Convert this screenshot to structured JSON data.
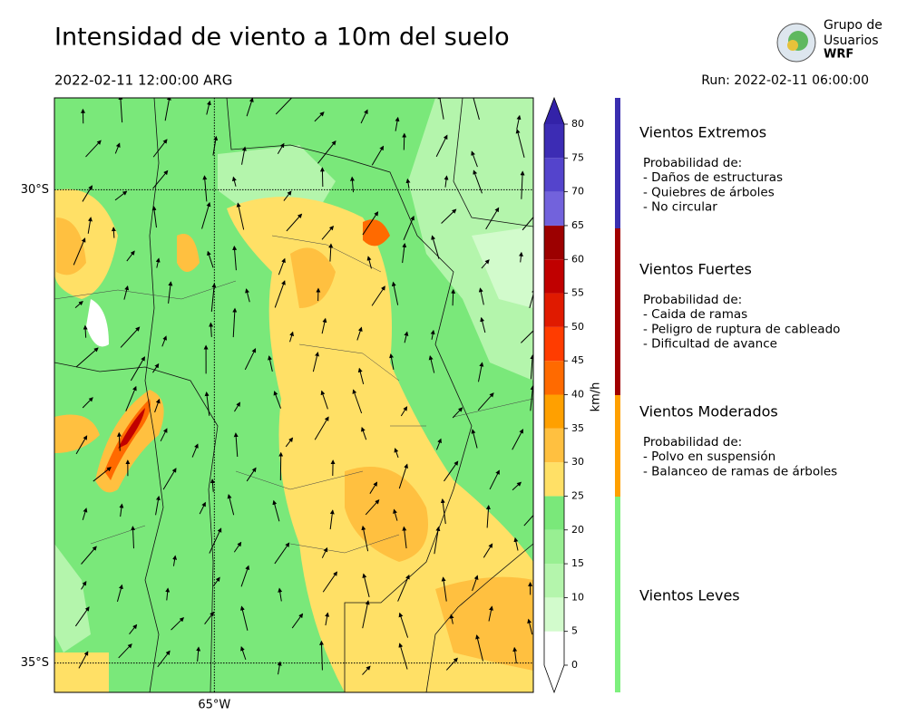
{
  "header": {
    "title": "Intensidad de viento a 10m del suelo",
    "valid_time": "2022-02-11 12:00:00 ARG",
    "run": "Run: 2022-02-11 06:00:00"
  },
  "logo": {
    "lines": [
      "Grupo de",
      "Usuarios",
      "WRF"
    ]
  },
  "map": {
    "lat_range": [
      -35.31,
      -29.03
    ],
    "lon_range": [
      -66.69,
      -61.63
    ],
    "lat_lines": [
      {
        "value": -30,
        "label": "30°S"
      },
      {
        "value": -35,
        "label": "35°S"
      }
    ],
    "lon_lines": [
      {
        "value": -65,
        "label": "65°W"
      }
    ]
  },
  "colorbar": {
    "label": "km/h",
    "ticks": [
      0,
      5,
      10,
      15,
      20,
      25,
      30,
      35,
      40,
      45,
      50,
      55,
      60,
      65,
      70,
      75,
      80
    ],
    "colors": [
      "#ffffff",
      "#d2fbcc",
      "#b4f5ac",
      "#98ef92",
      "#7ae87a",
      "#ffe066",
      "#ffc040",
      "#ffa000",
      "#ff6a00",
      "#ff3c00",
      "#e01a00",
      "#c00000",
      "#9c0000",
      "#7262dc",
      "#5444cc",
      "#3c2cb4"
    ],
    "under_color": "#ffffff",
    "over_color": "#3322a8"
  },
  "legend": [
    {
      "title": "Vientos Extremos",
      "color": "#3b2fa8",
      "bar_color": "#3a2fb0",
      "intro": "Probabilidad de:",
      "items": [
        "- Daños de estructuras",
        "- Quiebres de árboles",
        "- No circular"
      ]
    },
    {
      "title": "Vientos Fuertes",
      "color": "#a00000",
      "bar_color": "#a00000",
      "intro": "Probabilidad de:",
      "items": [
        "- Caida de ramas",
        "- Peligro de ruptura de cableado",
        "- Dificultad de avance"
      ]
    },
    {
      "title": "Vientos Moderados",
      "color": "#b07000",
      "bar_color": "#ffa000",
      "intro": "Probabilidad de:",
      "items": [
        "- Polvo en suspensión",
        "- Balanceo de ramas de árboles"
      ]
    },
    {
      "title": "Vientos Leves",
      "color": "#3a7a3a",
      "bar_color": "#7ef07e"
    }
  ]
}
